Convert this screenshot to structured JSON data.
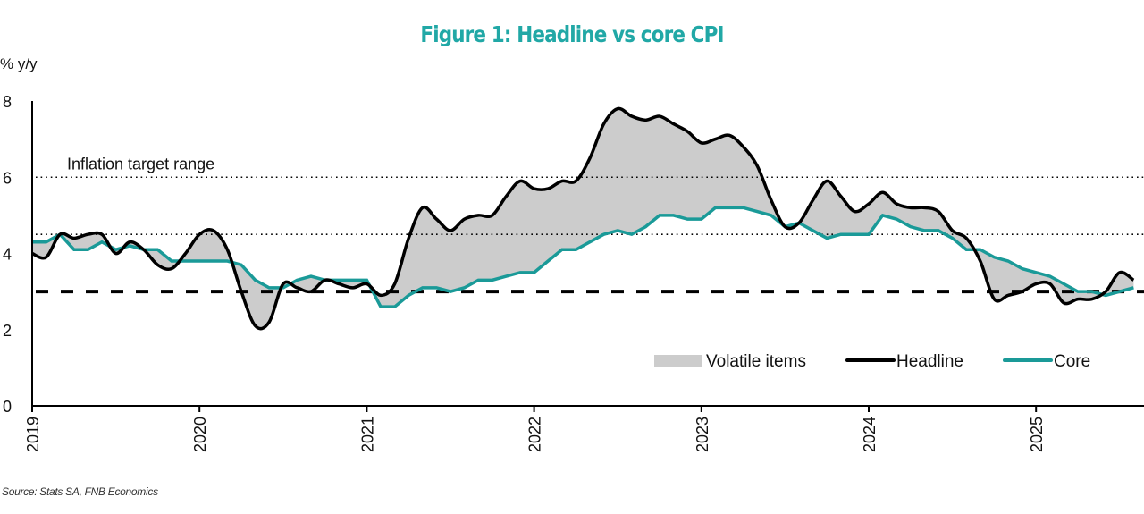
{
  "chart_data": {
    "type": "line",
    "title": "Figure 1: Headline vs core CPI",
    "ylabel": "% y/y",
    "xlabel": "",
    "ylim": [
      0,
      8
    ],
    "yticks": [
      0,
      2,
      4,
      6,
      8
    ],
    "xlim": [
      "2019-01",
      "2025-08"
    ],
    "xticks": [
      "2019",
      "2020",
      "2021",
      "2022",
      "2023",
      "2024",
      "2025"
    ],
    "grid": false,
    "legend_position": "bottom-right",
    "x_start": "2019-01",
    "frequency": "monthly",
    "series": [
      {
        "name": "Headline",
        "color": "#000000",
        "values": [
          4.0,
          3.9,
          4.5,
          4.4,
          4.5,
          4.5,
          4.0,
          4.3,
          4.1,
          3.7,
          3.6,
          4.0,
          4.5,
          4.6,
          4.1,
          3.0,
          2.1,
          2.2,
          3.2,
          3.1,
          3.0,
          3.3,
          3.2,
          3.1,
          3.2,
          2.9,
          3.2,
          4.4,
          5.2,
          4.9,
          4.6,
          4.9,
          5.0,
          5.0,
          5.5,
          5.9,
          5.7,
          5.7,
          5.9,
          5.9,
          6.5,
          7.4,
          7.8,
          7.6,
          7.5,
          7.6,
          7.4,
          7.2,
          6.9,
          7.0,
          7.1,
          6.8,
          6.3,
          5.4,
          4.7,
          4.8,
          5.4,
          5.9,
          5.5,
          5.1,
          5.3,
          5.6,
          5.3,
          5.2,
          5.2,
          5.1,
          4.6,
          4.4,
          3.8,
          2.8,
          2.9,
          3.0,
          3.2,
          3.2,
          2.7,
          2.8,
          2.8,
          3.0,
          3.5,
          3.3
        ]
      },
      {
        "name": "Core",
        "color": "#1a9a98",
        "values": [
          4.3,
          4.3,
          4.5,
          4.1,
          4.1,
          4.3,
          4.1,
          4.2,
          4.1,
          4.1,
          3.8,
          3.8,
          3.8,
          3.8,
          3.8,
          3.7,
          3.3,
          3.1,
          3.1,
          3.3,
          3.4,
          3.3,
          3.3,
          3.3,
          3.3,
          2.6,
          2.6,
          2.9,
          3.1,
          3.1,
          3.0,
          3.1,
          3.3,
          3.3,
          3.4,
          3.5,
          3.5,
          3.8,
          4.1,
          4.1,
          4.3,
          4.5,
          4.6,
          4.5,
          4.7,
          5.0,
          5.0,
          4.9,
          4.9,
          5.2,
          5.2,
          5.2,
          5.1,
          5.0,
          4.7,
          4.8,
          4.6,
          4.4,
          4.5,
          4.5,
          4.5,
          5.0,
          4.9,
          4.7,
          4.6,
          4.6,
          4.4,
          4.1,
          4.1,
          3.9,
          3.8,
          3.6,
          3.5,
          3.4,
          3.2,
          3.0,
          3.0,
          2.9,
          3.0,
          3.1
        ]
      }
    ],
    "shaded_area": {
      "name": "Volatile items",
      "between": [
        "Headline",
        "Core"
      ],
      "color": "#cccccc"
    },
    "reference_lines": [
      {
        "value": 6,
        "style": "dotted",
        "label": "Inflation target range"
      },
      {
        "value": 4.5,
        "style": "dotted",
        "label": ""
      },
      {
        "value": 3,
        "style": "dashed",
        "label": ""
      }
    ],
    "annotations": [
      "Inflation target range"
    ],
    "legend": [
      "Volatile items",
      "Headline",
      "Core"
    ],
    "source": "Source: Stats SA, FNB Economics"
  }
}
